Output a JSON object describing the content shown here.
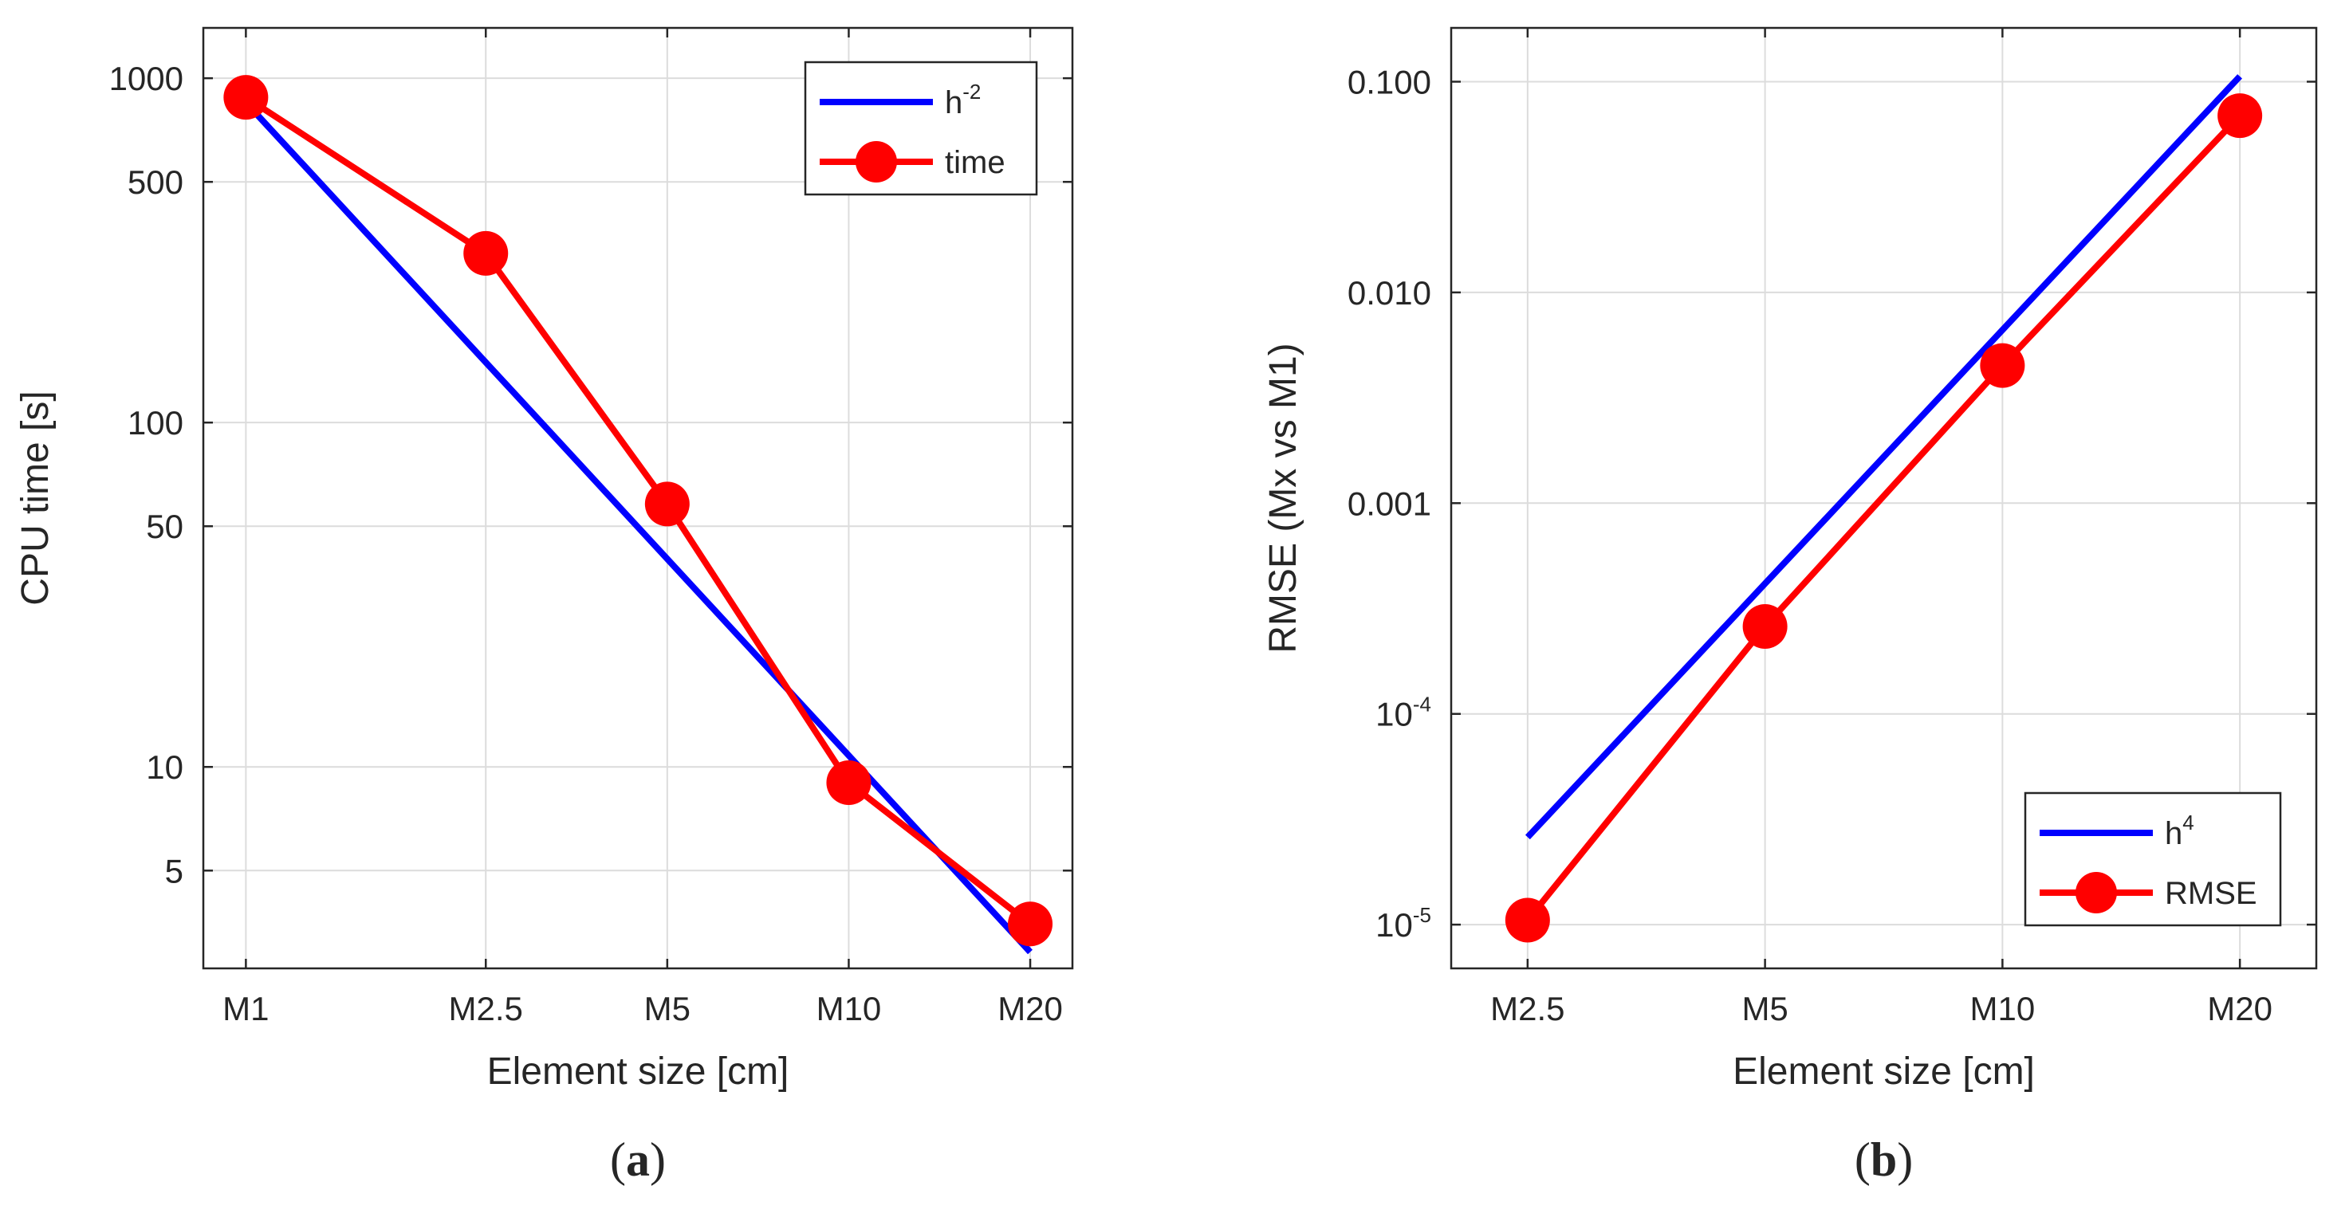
{
  "chart_data": [
    {
      "panel": "a",
      "type": "line",
      "xlabel": "Element size [cm]",
      "ylabel": "CPU time [s]",
      "yscale": "log",
      "ylim": [
        2.6,
        1400
      ],
      "categories": [
        "M1",
        "M2.5",
        "M5",
        "M10",
        "M20"
      ],
      "x": [
        1,
        2.5,
        5,
        10,
        20
      ],
      "xscale": "log",
      "yticks": [
        5,
        10,
        50,
        100,
        500,
        1000
      ],
      "ytick_labels": [
        "5",
        "10",
        "50",
        "100",
        "500",
        "1000"
      ],
      "grid": true,
      "legend_position": "top-right",
      "series": [
        {
          "name": "h",
          "name_sup": "-2",
          "color": "#0000ff",
          "marker": "none",
          "x": [
            1,
            20
          ],
          "values": [
            850,
            2.9
          ]
        },
        {
          "name": "time",
          "color": "#ff0000",
          "marker": "circle",
          "x": [
            1,
            2.5,
            5,
            10,
            20
          ],
          "values": [
            880,
            310,
            58,
            9,
            3.5
          ]
        }
      ],
      "panel_label": "(a)"
    },
    {
      "panel": "b",
      "type": "line",
      "xlabel": "Element size [cm]",
      "ylabel": "RMSE (Mx vs M1)",
      "yscale": "log",
      "ylim": [
        6.2e-06,
        0.18
      ],
      "categories": [
        "M2.5",
        "M5",
        "M10",
        "M20"
      ],
      "x": [
        2.5,
        5,
        10,
        20
      ],
      "xscale": "log",
      "yticks": [
        1e-05,
        0.0001,
        0.001,
        0.01,
        0.1
      ],
      "ytick_labels": [
        {
          "base": "10",
          "exp": "-5"
        },
        {
          "base": "10",
          "exp": "-4"
        },
        {
          "text": "0.001"
        },
        {
          "text": "0.010"
        },
        {
          "text": "0.100"
        }
      ],
      "grid": true,
      "legend_position": "bottom-right",
      "series": [
        {
          "name": "h",
          "name_sup": "4",
          "color": "#0000ff",
          "marker": "none",
          "x": [
            2.5,
            20
          ],
          "values": [
            2.6e-05,
            0.106
          ]
        },
        {
          "name": "RMSE",
          "color": "#ff0000",
          "marker": "circle",
          "x": [
            2.5,
            5,
            10,
            20
          ],
          "values": [
            1.05e-05,
            0.00026,
            0.0045,
            0.069
          ]
        }
      ],
      "panel_label": "(b)"
    }
  ]
}
